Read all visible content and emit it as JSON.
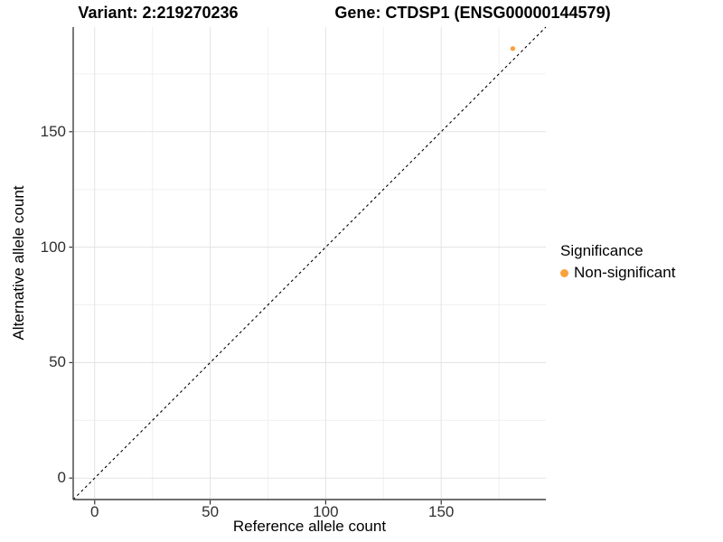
{
  "titles": {
    "left": "Variant: 2:219270236",
    "right": "Gene: CTDSP1 (ENSG00000144579)"
  },
  "chart_data": {
    "type": "scatter",
    "xlabel": "Reference allele count",
    "ylabel": "Alternative allele count",
    "xlim": [
      -9.3,
      195.3
    ],
    "ylim": [
      -9.3,
      195.3
    ],
    "x_major_ticks": [
      0,
      50,
      100,
      150
    ],
    "y_major_ticks": [
      0,
      50,
      100,
      150
    ],
    "x_minor_gridlines": [
      25,
      75,
      125,
      175
    ],
    "y_minor_gridlines": [
      25,
      75,
      125,
      175
    ],
    "grid": "major+minor",
    "identity_line": {
      "equation": "y = x",
      "style": "dashed",
      "color": "#000000"
    },
    "series": [
      {
        "name": "Non-significant",
        "color": "#F9A13D",
        "points": [
          {
            "x": 181,
            "y": 186
          }
        ]
      }
    ],
    "legend": {
      "title": "Significance",
      "position": "right",
      "entries": [
        {
          "label": "Non-significant",
          "color": "#F9A13D"
        }
      ]
    }
  },
  "colors": {
    "grid_major": "#e3e3e3",
    "grid_minor": "#f0f0f0",
    "axis_line": "#404040",
    "tick_mark": "#333333",
    "point": "#F9A13D"
  }
}
